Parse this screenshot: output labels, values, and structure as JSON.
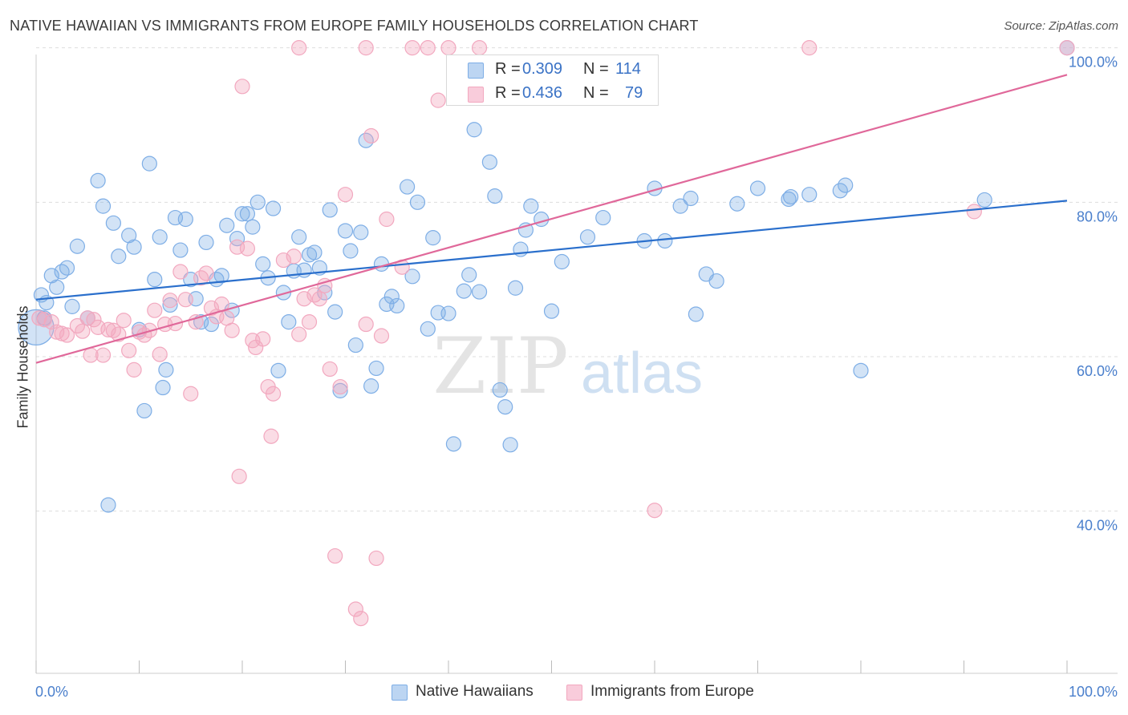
{
  "title": "NATIVE HAWAIIAN VS IMMIGRANTS FROM EUROPE FAMILY HOUSEHOLDS CORRELATION CHART",
  "source": "Source: ZipAtlas.com",
  "watermark": {
    "zip": "ZIP",
    "atlas": "atlas"
  },
  "legend": {
    "r_label": "R =",
    "n_label": "N =",
    "rows": [
      {
        "r": "0.309",
        "n": "114"
      },
      {
        "r": "0.436",
        "n": "79"
      }
    ]
  },
  "chart_data": {
    "type": "scatter",
    "ylabel": "Family Households",
    "xlabel": "",
    "xlim": [
      0,
      100
    ],
    "ylim": [
      19,
      101
    ],
    "x_tick_labels": [
      "0.0%",
      "100.0%"
    ],
    "y_ticks": [
      40,
      60,
      80,
      100
    ],
    "y_tick_labels": [
      "40.0%",
      "60.0%",
      "80.0%",
      "100.0%"
    ],
    "grid": "horizontal dashed",
    "legend_position": "top-center",
    "series": [
      {
        "name": "Native Hawaiians",
        "color": "#7eaee6",
        "line_color": "#2a6fcc",
        "trend": {
          "x": [
            0,
            100
          ],
          "y": [
            67.4,
            80.2
          ]
        },
        "points": [
          [
            0.5,
            68
          ],
          [
            0.8,
            65
          ],
          [
            1.0,
            67
          ],
          [
            1.5,
            70.5
          ],
          [
            2,
            69
          ],
          [
            2.5,
            71
          ],
          [
            3,
            71.5
          ],
          [
            3.5,
            66.5
          ],
          [
            4,
            74.3
          ],
          [
            5,
            65
          ],
          [
            6,
            82.8
          ],
          [
            6.5,
            79.5
          ],
          [
            7.5,
            77.3
          ],
          [
            8,
            73
          ],
          [
            9,
            75.7
          ],
          [
            9.5,
            74.2
          ],
          [
            10,
            63.5
          ],
          [
            10.5,
            53
          ],
          [
            11,
            85
          ],
          [
            11.5,
            70
          ],
          [
            12,
            75.5
          ],
          [
            12.3,
            56
          ],
          [
            12.6,
            58.3
          ],
          [
            13,
            66.7
          ],
          [
            13.5,
            78
          ],
          [
            14,
            73.8
          ],
          [
            14.5,
            77.8
          ],
          [
            15,
            70
          ],
          [
            15.5,
            67.5
          ],
          [
            16,
            64.5
          ],
          [
            16.5,
            74.8
          ],
          [
            17,
            64.2
          ],
          [
            17.5,
            70
          ],
          [
            18,
            70.5
          ],
          [
            18.5,
            77
          ],
          [
            19,
            66
          ],
          [
            19.5,
            75.3
          ],
          [
            20,
            78.5
          ],
          [
            20.5,
            78.5
          ],
          [
            21,
            76.8
          ],
          [
            21.5,
            80
          ],
          [
            22,
            72
          ],
          [
            22.5,
            70.2
          ],
          [
            23,
            79.2
          ],
          [
            23.5,
            58.2
          ],
          [
            24,
            68.3
          ],
          [
            24.5,
            64.5
          ],
          [
            25,
            71.1
          ],
          [
            25.5,
            75.5
          ],
          [
            26,
            71.2
          ],
          [
            26.5,
            73.2
          ],
          [
            27,
            73.5
          ],
          [
            27.5,
            71.5
          ],
          [
            28,
            68.3
          ],
          [
            28.5,
            79
          ],
          [
            29,
            65.8
          ],
          [
            29.5,
            55.6
          ],
          [
            30,
            76.3
          ],
          [
            30.5,
            73.7
          ],
          [
            31,
            61.5
          ],
          [
            31.5,
            76.1
          ],
          [
            32,
            88
          ],
          [
            32.5,
            56.2
          ],
          [
            33,
            58.5
          ],
          [
            33.5,
            72
          ],
          [
            34,
            66.8
          ],
          [
            34.5,
            67.8
          ],
          [
            35,
            66.6
          ],
          [
            36,
            82
          ],
          [
            36.5,
            70.4
          ],
          [
            37,
            80
          ],
          [
            38,
            63.6
          ],
          [
            38.5,
            75.4
          ],
          [
            39,
            65.7
          ],
          [
            40,
            65.6
          ],
          [
            40.5,
            48.7
          ],
          [
            41.5,
            68.5
          ],
          [
            42,
            70.6
          ],
          [
            42.5,
            89.4
          ],
          [
            43,
            68.4
          ],
          [
            44,
            85.2
          ],
          [
            44.5,
            80.8
          ],
          [
            45,
            55.7
          ],
          [
            45.5,
            53.5
          ],
          [
            46,
            48.6
          ],
          [
            46.5,
            68.9
          ],
          [
            47,
            73.9
          ],
          [
            47.5,
            76.4
          ],
          [
            48,
            79.5
          ],
          [
            49,
            77.8
          ],
          [
            50,
            65.9
          ],
          [
            51,
            72.3
          ],
          [
            53.5,
            75.5
          ],
          [
            55,
            78
          ],
          [
            59,
            75
          ],
          [
            60,
            81.8
          ],
          [
            61,
            75
          ],
          [
            62.5,
            79.5
          ],
          [
            63.5,
            80.5
          ],
          [
            64,
            65.5
          ],
          [
            65,
            70.7
          ],
          [
            66,
            69.8
          ],
          [
            68,
            79.8
          ],
          [
            70,
            81.8
          ],
          [
            73,
            80.4
          ],
          [
            73.2,
            80.7
          ],
          [
            75,
            81
          ],
          [
            78,
            81.5
          ],
          [
            78.5,
            82.2
          ],
          [
            80,
            58.2
          ],
          [
            92,
            80.3
          ],
          [
            100,
            100
          ],
          [
            7,
            40.8
          ],
          [
            0,
            63.8
          ]
        ],
        "point_radius_note": "two large points near x=0"
      },
      {
        "name": "Immigrants from Europe",
        "color": "#f2a8bf",
        "line_color": "#e0689a",
        "trend": {
          "x": [
            0,
            100
          ],
          "y": [
            59.2,
            96.5
          ]
        },
        "points": [
          [
            0.3,
            65
          ],
          [
            0.8,
            64.8
          ],
          [
            1.5,
            64.5
          ],
          [
            2,
            63.2
          ],
          [
            2.5,
            63
          ],
          [
            3,
            62.8
          ],
          [
            4,
            64
          ],
          [
            4.5,
            63.3
          ],
          [
            5,
            65
          ],
          [
            5.3,
            60.2
          ],
          [
            5.6,
            64.8
          ],
          [
            6,
            63.8
          ],
          [
            6.5,
            60.2
          ],
          [
            7,
            63.5
          ],
          [
            7.5,
            63.4
          ],
          [
            8,
            62.9
          ],
          [
            8.5,
            64.7
          ],
          [
            9,
            60.8
          ],
          [
            9.5,
            58.3
          ],
          [
            10,
            63.2
          ],
          [
            10.5,
            62.8
          ],
          [
            11,
            63.4
          ],
          [
            11.5,
            66
          ],
          [
            12,
            60.3
          ],
          [
            12.5,
            64.2
          ],
          [
            13,
            67.3
          ],
          [
            13.5,
            64.3
          ],
          [
            14,
            71
          ],
          [
            14.5,
            67.4
          ],
          [
            15,
            55.2
          ],
          [
            15.5,
            64.5
          ],
          [
            16,
            70.2
          ],
          [
            16.5,
            70.8
          ],
          [
            17,
            66.3
          ],
          [
            17.5,
            65.2
          ],
          [
            18,
            66.8
          ],
          [
            18.5,
            65
          ],
          [
            19,
            63.4
          ],
          [
            19.5,
            74.2
          ],
          [
            19.7,
            44.5
          ],
          [
            20,
            95
          ],
          [
            20.5,
            74
          ],
          [
            21,
            62.1
          ],
          [
            21.3,
            61.2
          ],
          [
            22,
            62.3
          ],
          [
            22.5,
            56.1
          ],
          [
            22.8,
            49.7
          ],
          [
            23,
            55.2
          ],
          [
            24,
            72.5
          ],
          [
            25,
            73
          ],
          [
            25.5,
            62.9
          ],
          [
            26,
            67.5
          ],
          [
            26.5,
            64.5
          ],
          [
            27,
            68
          ],
          [
            27.5,
            67.5
          ],
          [
            28,
            69.2
          ],
          [
            28.5,
            58.4
          ],
          [
            29,
            34.2
          ],
          [
            29.5,
            56.1
          ],
          [
            30,
            81
          ],
          [
            31,
            27.3
          ],
          [
            31.5,
            26.1
          ],
          [
            32,
            64.2
          ],
          [
            32.5,
            88.6
          ],
          [
            33,
            33.9
          ],
          [
            33.5,
            62.7
          ],
          [
            34,
            77.8
          ],
          [
            35.5,
            71.6
          ],
          [
            36.5,
            100
          ],
          [
            38,
            100
          ],
          [
            39,
            93.2
          ],
          [
            40,
            100
          ],
          [
            43,
            100
          ],
          [
            60,
            40.1
          ],
          [
            75,
            100
          ],
          [
            91,
            78.8
          ],
          [
            100,
            100
          ],
          [
            25.5,
            100
          ],
          [
            32,
            100
          ]
        ]
      }
    ]
  }
}
